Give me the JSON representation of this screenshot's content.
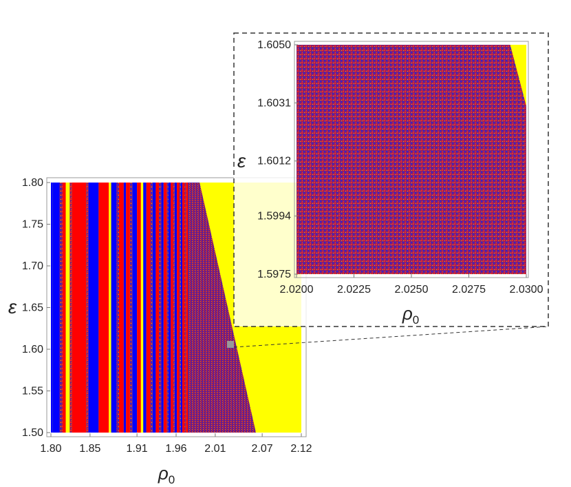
{
  "colors": {
    "red": "#ff0000",
    "blue": "#0000ff",
    "yellow": "#ffff00",
    "mixed": "#8a1f6e",
    "frame": "#888888",
    "dashed": "#333333"
  },
  "chart_data": [
    {
      "id": "main",
      "type": "heatmap",
      "title": "",
      "xlabel": "ρ",
      "xlabel_sub": "0",
      "ylabel": "ε",
      "xlim": [
        1.8,
        2.12
      ],
      "ylim": [
        1.5,
        1.8
      ],
      "xticks": [
        "1.80",
        "1.85",
        "1.91",
        "1.96",
        "2.01",
        "2.07",
        "2.12"
      ],
      "yticks": [
        "1.50",
        "1.55",
        "1.60",
        "1.65",
        "1.70",
        "1.75",
        "1.80"
      ],
      "grid": false,
      "chaotic_boundary": [
        [
          1.99,
          1.8
        ],
        [
          2.062,
          1.5
        ]
      ],
      "bands": [
        {
          "x0": 1.8,
          "x1": 1.802,
          "color": "blue"
        },
        {
          "x0": 1.802,
          "x1": 1.811,
          "color": "blue"
        },
        {
          "x0": 1.811,
          "x1": 1.815,
          "color": "mixed"
        },
        {
          "x0": 1.815,
          "x1": 1.819,
          "color": "red"
        },
        {
          "x0": 1.819,
          "x1": 1.824,
          "color": "yellow"
        },
        {
          "x0": 1.824,
          "x1": 1.827,
          "color": "mixed"
        },
        {
          "x0": 1.827,
          "x1": 1.845,
          "color": "red"
        },
        {
          "x0": 1.845,
          "x1": 1.848,
          "color": "mixed"
        },
        {
          "x0": 1.848,
          "x1": 1.861,
          "color": "blue"
        },
        {
          "x0": 1.861,
          "x1": 1.874,
          "color": "red"
        },
        {
          "x0": 1.874,
          "x1": 1.877,
          "color": "yellow"
        },
        {
          "x0": 1.877,
          "x1": 1.884,
          "color": "blue"
        },
        {
          "x0": 1.884,
          "x1": 1.887,
          "color": "mixed"
        },
        {
          "x0": 1.887,
          "x1": 1.893,
          "color": "red"
        },
        {
          "x0": 1.893,
          "x1": 1.896,
          "color": "blue"
        },
        {
          "x0": 1.896,
          "x1": 1.901,
          "color": "red"
        },
        {
          "x0": 1.901,
          "x1": 1.904,
          "color": "mixed"
        },
        {
          "x0": 1.904,
          "x1": 1.91,
          "color": "blue"
        },
        {
          "x0": 1.91,
          "x1": 1.915,
          "color": "red"
        },
        {
          "x0": 1.915,
          "x1": 1.918,
          "color": "yellow"
        },
        {
          "x0": 1.918,
          "x1": 1.922,
          "color": "blue"
        },
        {
          "x0": 1.922,
          "x1": 1.927,
          "color": "red"
        },
        {
          "x0": 1.927,
          "x1": 1.93,
          "color": "mixed"
        },
        {
          "x0": 1.93,
          "x1": 1.934,
          "color": "blue"
        },
        {
          "x0": 1.934,
          "x1": 1.938,
          "color": "red"
        },
        {
          "x0": 1.938,
          "x1": 1.941,
          "color": "mixed"
        },
        {
          "x0": 1.941,
          "x1": 1.944,
          "color": "blue"
        },
        {
          "x0": 1.944,
          "x1": 1.948,
          "color": "red"
        },
        {
          "x0": 1.948,
          "x1": 1.95,
          "color": "mixed"
        },
        {
          "x0": 1.95,
          "x1": 1.953,
          "color": "blue"
        },
        {
          "x0": 1.953,
          "x1": 1.956,
          "color": "red"
        },
        {
          "x0": 1.956,
          "x1": 1.958,
          "color": "mixed"
        },
        {
          "x0": 1.958,
          "x1": 1.961,
          "color": "blue"
        },
        {
          "x0": 1.961,
          "x1": 1.964,
          "color": "red"
        },
        {
          "x0": 1.964,
          "x1": 1.966,
          "color": "mixed"
        },
        {
          "x0": 1.966,
          "x1": 1.968,
          "color": "blue"
        },
        {
          "x0": 1.968,
          "x1": 1.971,
          "color": "red"
        },
        {
          "x0": 1.971,
          "x1": 1.973,
          "color": "mixed"
        },
        {
          "x0": 1.973,
          "x1": 1.975,
          "color": "red"
        }
      ]
    },
    {
      "id": "inset",
      "type": "heatmap",
      "title": "",
      "xlabel": "ρ",
      "xlabel_sub": "0",
      "ylabel": "ε",
      "xlim": [
        2.02,
        2.03
      ],
      "ylim": [
        1.5975,
        1.605
      ],
      "xticks": [
        "2.0200",
        "2.0225",
        "2.0250",
        "2.0275",
        "2.0300"
      ],
      "yticks": [
        "1.5975",
        "1.5994",
        "1.6012",
        "1.6031",
        "1.6050"
      ],
      "grid": false,
      "chaotic_boundary": [
        [
          2.0293,
          1.605
        ],
        [
          2.03,
          1.603
        ]
      ],
      "fill": "mixed"
    }
  ]
}
